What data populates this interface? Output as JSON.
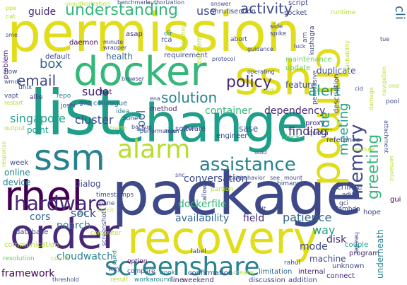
{
  "palette": {
    "yellow": "#e1dd1b",
    "lime": "#b6de2b",
    "green": "#6cce59",
    "sea": "#35b779",
    "teal": "#1f9e89",
    "teal2": "#26828e",
    "blue": "#31688e",
    "indigo": "#3e4989",
    "violet": "#482878",
    "dark": "#440154"
  },
  "words": [
    {
      "text": "permission",
      "color": "#e1dd1b"
    },
    {
      "text": "package",
      "color": "#3e4989"
    },
    {
      "text": "change",
      "color": "#1f9e89"
    },
    {
      "text": "recovery",
      "color": "#e1dd1b"
    },
    {
      "text": "list",
      "color": "#1f9e89"
    },
    {
      "text": "ssh",
      "color": "#e1dd1b"
    },
    {
      "text": "docker",
      "color": "#35b779"
    },
    {
      "text": "chmod",
      "color": "#e1dd1b"
    },
    {
      "text": "order",
      "color": "#482878"
    },
    {
      "text": "ssm",
      "color": "#26828e"
    },
    {
      "text": "rhel",
      "color": "#440154"
    },
    {
      "text": "screenshare",
      "color": "#26828e"
    },
    {
      "text": "alarm",
      "color": "#b6de2b"
    },
    {
      "text": "assistance",
      "color": "#26828e"
    },
    {
      "text": "hardware",
      "color": "#482878"
    },
    {
      "text": "memory",
      "color": "#3e4989"
    },
    {
      "text": "greeting",
      "color": "#35b779"
    },
    {
      "text": "understanding",
      "color": "#35b779"
    },
    {
      "text": "policy",
      "color": "#482878"
    },
    {
      "text": "solution",
      "color": "#26828e"
    },
    {
      "text": "activity",
      "color": "#3e4989"
    },
    {
      "text": "alert",
      "color": "#1f9e89"
    },
    {
      "text": "email",
      "color": "#3e4989"
    },
    {
      "text": "cli",
      "color": "#31688e"
    },
    {
      "text": "box",
      "color": "#31688e"
    },
    {
      "text": "tool",
      "color": "#31688e"
    },
    {
      "text": "meeting",
      "color": "#1f9e89"
    },
    {
      "text": "singapore",
      "color": "#1f9e89"
    },
    {
      "text": "cluster",
      "color": "#3e4989"
    },
    {
      "text": "container",
      "color": "#35b779"
    },
    {
      "text": "dependency",
      "color": "#482878"
    },
    {
      "text": "finding",
      "color": "#482878"
    },
    {
      "text": "api",
      "color": "#1f9e89"
    },
    {
      "text": "sudo",
      "color": "#482878"
    },
    {
      "text": "cors",
      "color": "#31688e"
    },
    {
      "text": "noarch",
      "color": "#26828e"
    },
    {
      "text": "sock",
      "color": "#3e4989"
    },
    {
      "text": "availability",
      "color": "#31688e"
    },
    {
      "text": "field",
      "color": "#482878"
    },
    {
      "text": "cloudwatch",
      "color": "#26828e"
    },
    {
      "text": "framework",
      "color": "#440154"
    },
    {
      "text": "conversation",
      "color": "#3e4989"
    },
    {
      "text": "dockerfile",
      "color": "#35b779"
    },
    {
      "text": "patience",
      "color": "#31688e"
    },
    {
      "text": "disk",
      "color": "#482878"
    },
    {
      "text": "way",
      "color": "#1f9e89"
    },
    {
      "text": "mode",
      "color": "#3e4989"
    },
    {
      "text": "machine",
      "color": "#3e4989"
    },
    {
      "text": "use",
      "color": "#3e4989"
    },
    {
      "text": "guide",
      "color": "#482878"
    },
    {
      "text": "feature",
      "color": "#3e4989"
    },
    {
      "text": "duplicate",
      "color": "#3e4989"
    },
    {
      "text": "reference",
      "color": "#3e4989"
    },
    {
      "text": "chime",
      "color": "#3e4989"
    },
    {
      "text": "point",
      "color": "#1f9e89"
    },
    {
      "text": "online",
      "color": "#26828e"
    },
    {
      "text": "device",
      "color": "#26828e"
    },
    {
      "text": "dialog",
      "color": "#3e4989"
    },
    {
      "text": "health",
      "color": "#31688e"
    },
    {
      "text": "problem",
      "color": "#482878"
    },
    {
      "text": "default",
      "color": "#3e4989"
    },
    {
      "text": "rca",
      "color": "#3e4989"
    },
    {
      "text": "asap",
      "color": "#482878"
    },
    {
      "text": "daemon",
      "color": "#440154"
    },
    {
      "text": "concern",
      "color": "#b6de2b"
    },
    {
      "text": "description",
      "color": "#3e4989"
    },
    {
      "text": "maintenance",
      "color": "#6cce59"
    },
    {
      "text": "requirement",
      "color": "#3e4989"
    },
    {
      "text": "colleague",
      "color": "#31688e"
    },
    {
      "text": "method",
      "color": "#482878"
    },
    {
      "text": "hat",
      "color": "#440154"
    },
    {
      "text": "sase",
      "color": "#3e4989"
    },
    {
      "text": "engineer",
      "color": "#3e4989"
    },
    {
      "text": "block",
      "color": "#35b779"
    },
    {
      "text": "software",
      "color": "#3e4989"
    },
    {
      "text": "permissive",
      "color": "#3e4989"
    },
    {
      "text": "update",
      "color": "#6cce59"
    },
    {
      "text": "proxy",
      "color": "#482878"
    },
    {
      "text": "quota",
      "color": "#3e4989"
    },
    {
      "text": "gui",
      "color": "#440154"
    },
    {
      "text": "hope",
      "color": "#3e4989"
    },
    {
      "text": "couple",
      "color": "#1f9e89"
    },
    {
      "text": "program",
      "color": "#482878"
    },
    {
      "text": "connect",
      "color": "#482878"
    },
    {
      "text": "underneath",
      "color": "#26828e"
    },
    {
      "text": "unknown",
      "color": "#3e4989"
    },
    {
      "text": "header",
      "color": "#3e4989"
    },
    {
      "text": "internal",
      "color": "#482878"
    },
    {
      "text": "limitation",
      "color": "#31688e"
    },
    {
      "text": "confirmation",
      "color": "#3e4989"
    },
    {
      "text": "create",
      "color": "#b6de2b"
    },
    {
      "text": "weekend",
      "color": "#482878"
    },
    {
      "text": "workaround",
      "color": "#26828e"
    },
    {
      "text": "discussion",
      "color": "#3e4989"
    },
    {
      "text": "addition",
      "color": "#3e4989"
    },
    {
      "text": "result",
      "color": "#b6de2b"
    },
    {
      "text": "line",
      "color": "#482878"
    },
    {
      "text": "book",
      "color": "#26828e"
    },
    {
      "text": "compare",
      "color": "#3e4989"
    },
    {
      "text": "option",
      "color": "#440154"
    },
    {
      "text": "rahul",
      "color": "#3e4989"
    },
    {
      "text": "label",
      "color": "#3e4989"
    },
    {
      "text": "party",
      "color": "#26828e"
    },
    {
      "text": "key",
      "color": "#3e4989"
    },
    {
      "text": "communication",
      "color": "#b6de2b"
    },
    {
      "text": "database",
      "color": "#3e4989"
    },
    {
      "text": "resolution",
      "color": "#6cce59"
    },
    {
      "text": "count",
      "color": "#b6de2b"
    },
    {
      "text": "threshold",
      "color": "#3e4989"
    },
    {
      "text": "screenshot",
      "color": "#3e4989"
    },
    {
      "text": "computer",
      "color": "#b6de2b"
    },
    {
      "text": "timestamps",
      "color": "#3e4989"
    },
    {
      "text": "spirit",
      "color": "#b6de2b"
    },
    {
      "text": "pane",
      "color": "#3e4989"
    },
    {
      "text": "etc",
      "color": "#26828e"
    },
    {
      "text": "week",
      "color": "#3e4989"
    },
    {
      "text": "output",
      "color": "#b6de2b"
    },
    {
      "text": "vapt",
      "color": "#3e4989"
    },
    {
      "text": "allie",
      "color": "#482878"
    },
    {
      "text": "repo",
      "color": "#26828e"
    },
    {
      "text": "joshi",
      "color": "#3e4989"
    },
    {
      "text": "gap",
      "color": "#3e4989"
    },
    {
      "text": "idea",
      "color": "#26828e"
    },
    {
      "text": "zone",
      "color": "#3e4989"
    },
    {
      "text": "unix",
      "color": "#3e4989"
    },
    {
      "text": "flow",
      "color": "#3e4989"
    },
    {
      "text": "restart",
      "color": "#b6de2b"
    },
    {
      "text": "wmdb",
      "color": "#3e4989"
    },
    {
      "text": "response",
      "color": "#b6de2b"
    },
    {
      "text": "traffic",
      "color": "#b6de2b"
    },
    {
      "text": "backup",
      "color": "#3e4989"
    },
    {
      "text": "performance",
      "color": "#3e4989"
    },
    {
      "text": "town",
      "color": "#3e4989"
    },
    {
      "text": "run",
      "color": "#3e4989"
    },
    {
      "text": "partion",
      "color": "#b6de2b"
    },
    {
      "text": "allow",
      "color": "#3e4989"
    },
    {
      "text": "inside",
      "color": "#3e4989"
    },
    {
      "text": "behavior",
      "color": "#3e4989"
    },
    {
      "text": "see",
      "color": "#3e4989"
    },
    {
      "text": "mount",
      "color": "#3e4989"
    },
    {
      "text": "himanshu",
      "color": "#3e4989"
    },
    {
      "text": "uuid",
      "color": "#3e4989"
    },
    {
      "text": "init",
      "color": "#3e4989"
    },
    {
      "text": "adil",
      "color": "#3e4989"
    },
    {
      "text": "gci",
      "color": "#3e4989"
    },
    {
      "text": "lambda",
      "color": "#3e4989"
    },
    {
      "text": "module",
      "color": "#b6de2b"
    },
    {
      "text": "attachment",
      "color": "#3e4989"
    },
    {
      "text": "semantic",
      "color": "#b6de2b"
    },
    {
      "text": "cat",
      "color": "#b6de2b"
    },
    {
      "text": "ppe",
      "color": "#b6de2b"
    },
    {
      "text": "unauthorization",
      "color": "#b6de2b"
    },
    {
      "text": "benchmark",
      "color": "#3e4989"
    },
    {
      "text": "authorization",
      "color": "#3e4989"
    },
    {
      "text": "shruti",
      "color": "#3e4989"
    },
    {
      "text": "section",
      "color": "#3e4989"
    },
    {
      "text": "answer",
      "color": "#3e4989"
    },
    {
      "text": "socket",
      "color": "#3e4989"
    },
    {
      "text": "script",
      "color": "#3e4989"
    },
    {
      "text": "runtime",
      "color": "#b6de2b"
    },
    {
      "text": "side",
      "color": "#3e4989"
    },
    {
      "text": "spike",
      "color": "#3e4989"
    },
    {
      "text": "arn",
      "color": "#3e4989"
    },
    {
      "text": "kushagra",
      "color": "#3e4989"
    },
    {
      "text": "dir",
      "color": "#26828e"
    },
    {
      "text": "abort",
      "color": "#3e4989"
    },
    {
      "text": "luck",
      "color": "#3e4989"
    },
    {
      "text": "minute",
      "color": "#3e4989"
    },
    {
      "text": "wrapper",
      "color": "#3e4989"
    },
    {
      "text": "detaching",
      "color": "#b6de2b"
    },
    {
      "text": "guidance",
      "color": "#3e4989"
    },
    {
      "text": "protocol",
      "color": "#3e4989"
    },
    {
      "text": "reachability",
      "color": "#b6de2b"
    },
    {
      "text": "operating",
      "color": "#3e4989"
    },
    {
      "text": "look",
      "color": "#b6de2b"
    },
    {
      "text": "browser",
      "color": "#3e4989"
    },
    {
      "text": "ena",
      "color": "#3e4989"
    },
    {
      "text": "navigation",
      "color": "#b6de2b"
    },
    {
      "text": "damage",
      "color": "#b6de2b"
    },
    {
      "text": "pool",
      "color": "#3e4989"
    },
    {
      "text": "one",
      "color": "#b6de2b"
    },
    {
      "text": "tue",
      "color": "#3e4989"
    },
    {
      "text": "sme",
      "color": "#3e4989"
    },
    {
      "text": "snc",
      "color": "#3e4989"
    },
    {
      "text": "cid",
      "color": "#3e4989"
    }
  ]
}
